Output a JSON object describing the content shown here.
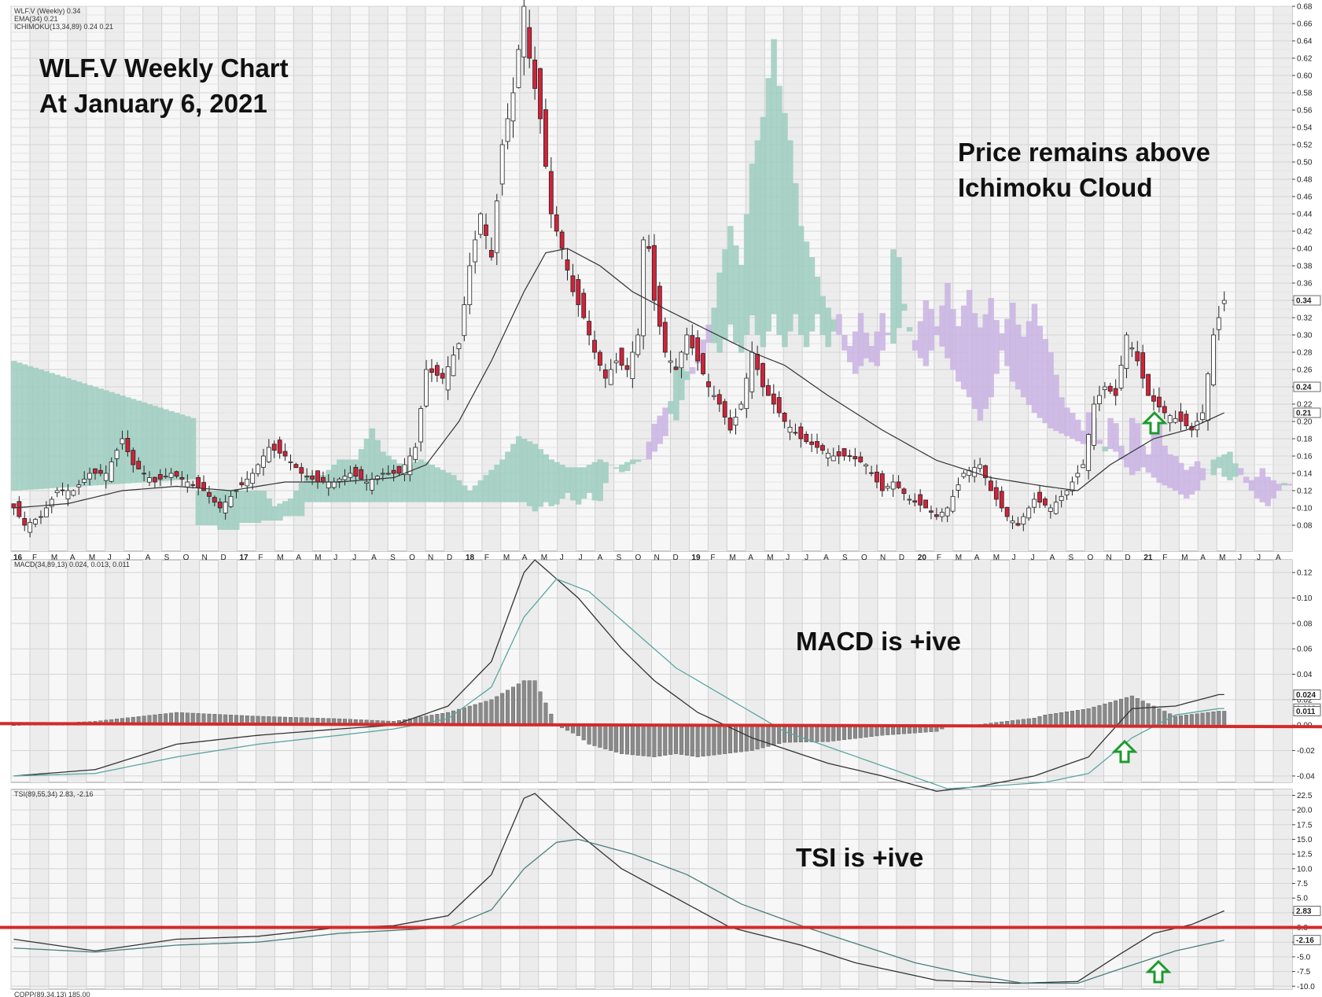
{
  "chart_data": [
    {
      "type": "candlestick",
      "legend": [
        "WLF.V (Weekly) 0.34",
        "EMA(34) 0.21",
        "ICHIMOKU(13,34,89) 0.24 0.21"
      ],
      "annotations": [
        {
          "id": "title",
          "lines": [
            "WLF.V Weekly Chart",
            "At January 6, 2021"
          ]
        },
        {
          "id": "price-note",
          "lines": [
            "Price remains above",
            "Ichimoku Cloud"
          ]
        }
      ],
      "xtick_labels": [
        "16",
        "F",
        "M",
        "A",
        "M",
        "J",
        "J",
        "A",
        "S",
        "O",
        "N",
        "D",
        "17",
        "F",
        "M",
        "A",
        "M",
        "J",
        "J",
        "A",
        "S",
        "O",
        "N",
        "D",
        "18",
        "F",
        "M",
        "A",
        "M",
        "J",
        "J",
        "A",
        "S",
        "O",
        "N",
        "D",
        "19",
        "F",
        "M",
        "A",
        "M",
        "J",
        "J",
        "A",
        "S",
        "O",
        "N",
        "D",
        "20",
        "F",
        "M",
        "A",
        "M",
        "J",
        "J",
        "A",
        "S",
        "O",
        "N",
        "D",
        "21",
        "F",
        "M",
        "A",
        "M",
        "J",
        "J",
        "A"
      ],
      "ylim": [
        0.05,
        0.68
      ],
      "yticks": [
        "0.08",
        "0.10",
        "0.12",
        "0.14",
        "0.16",
        "0.18",
        "0.20",
        "0.22",
        "0.24",
        "0.26",
        "0.28",
        "0.30",
        "0.32",
        "0.34",
        "0.36",
        "0.38",
        "0.40",
        "0.42",
        "0.44",
        "0.46",
        "0.48",
        "0.50",
        "0.52",
        "0.54",
        "0.56",
        "0.58",
        "0.60",
        "0.62",
        "0.64",
        "0.66",
        "0.68"
      ],
      "last_labels": [
        "0.34",
        "0.24",
        "0.21"
      ],
      "price_path": [
        [
          0,
          0.1
        ],
        [
          2,
          0.08
        ],
        [
          5,
          0.09
        ],
        [
          8,
          0.12
        ],
        [
          11,
          0.12
        ],
        [
          14,
          0.14
        ],
        [
          17,
          0.14
        ],
        [
          20,
          0.18
        ],
        [
          22,
          0.15
        ],
        [
          26,
          0.13
        ],
        [
          29,
          0.14
        ],
        [
          32,
          0.13
        ],
        [
          35,
          0.12
        ],
        [
          38,
          0.1
        ],
        [
          41,
          0.12
        ],
        [
          44,
          0.14
        ],
        [
          47,
          0.17
        ],
        [
          50,
          0.16
        ],
        [
          53,
          0.14
        ],
        [
          56,
          0.13
        ],
        [
          59,
          0.13
        ],
        [
          62,
          0.14
        ],
        [
          65,
          0.13
        ],
        [
          68,
          0.14
        ],
        [
          71,
          0.14
        ],
        [
          74,
          0.17
        ],
        [
          76,
          0.26
        ],
        [
          79,
          0.25
        ],
        [
          82,
          0.29
        ],
        [
          84,
          0.38
        ],
        [
          86,
          0.44
        ],
        [
          88,
          0.39
        ],
        [
          90,
          0.52
        ],
        [
          92,
          0.58
        ],
        [
          94,
          0.68
        ],
        [
          95,
          0.62
        ],
        [
          97,
          0.55
        ],
        [
          99,
          0.44
        ],
        [
          101,
          0.4
        ],
        [
          103,
          0.35
        ],
        [
          105,
          0.32
        ],
        [
          107,
          0.28
        ],
        [
          109,
          0.25
        ],
        [
          111,
          0.27
        ],
        [
          113,
          0.26
        ],
        [
          115,
          0.3
        ],
        [
          116,
          0.41
        ],
        [
          117,
          0.4
        ],
        [
          118,
          0.34
        ],
        [
          120,
          0.28
        ],
        [
          122,
          0.26
        ],
        [
          124,
          0.3
        ],
        [
          126,
          0.27
        ],
        [
          128,
          0.24
        ],
        [
          130,
          0.22
        ],
        [
          132,
          0.19
        ],
        [
          134,
          0.22
        ],
        [
          136,
          0.28
        ],
        [
          138,
          0.24
        ],
        [
          140,
          0.22
        ],
        [
          142,
          0.2
        ],
        [
          145,
          0.18
        ],
        [
          148,
          0.17
        ],
        [
          151,
          0.16
        ],
        [
          154,
          0.16
        ],
        [
          157,
          0.15
        ],
        [
          160,
          0.12
        ],
        [
          162,
          0.13
        ],
        [
          165,
          0.11
        ],
        [
          168,
          0.1
        ],
        [
          170,
          0.09
        ],
        [
          172,
          0.1
        ],
        [
          175,
          0.14
        ],
        [
          178,
          0.15
        ],
        [
          180,
          0.12
        ],
        [
          183,
          0.09
        ],
        [
          185,
          0.08
        ],
        [
          188,
          0.11
        ],
        [
          191,
          0.1
        ],
        [
          194,
          0.12
        ],
        [
          197,
          0.15
        ],
        [
          199,
          0.22
        ],
        [
          201,
          0.24
        ],
        [
          203,
          0.23
        ],
        [
          205,
          0.3
        ],
        [
          207,
          0.27
        ],
        [
          209,
          0.23
        ],
        [
          212,
          0.21
        ],
        [
          215,
          0.2
        ],
        [
          217,
          0.19
        ],
        [
          219,
          0.21
        ],
        [
          221,
          0.3
        ],
        [
          223,
          0.34
        ]
      ],
      "ema_path": [
        [
          0,
          0.1
        ],
        [
          10,
          0.105
        ],
        [
          20,
          0.12
        ],
        [
          30,
          0.125
        ],
        [
          40,
          0.12
        ],
        [
          50,
          0.13
        ],
        [
          60,
          0.13
        ],
        [
          70,
          0.135
        ],
        [
          76,
          0.15
        ],
        [
          82,
          0.2
        ],
        [
          88,
          0.27
        ],
        [
          94,
          0.35
        ],
        [
          98,
          0.395
        ],
        [
          102,
          0.4
        ],
        [
          108,
          0.38
        ],
        [
          114,
          0.35
        ],
        [
          120,
          0.33
        ],
        [
          128,
          0.305
        ],
        [
          136,
          0.28
        ],
        [
          142,
          0.265
        ],
        [
          150,
          0.23
        ],
        [
          160,
          0.19
        ],
        [
          170,
          0.155
        ],
        [
          180,
          0.135
        ],
        [
          190,
          0.125
        ],
        [
          196,
          0.12
        ],
        [
          202,
          0.15
        ],
        [
          210,
          0.18
        ],
        [
          216,
          0.19
        ],
        [
          223,
          0.21
        ]
      ]
    },
    {
      "type": "line",
      "legend": [
        "MACD(34,89,13) 0.024, 0.013, 0.011"
      ],
      "annotations": [
        "MACD is +ive"
      ],
      "ylim": [
        -0.045,
        0.13
      ],
      "yticks": [
        "0.12",
        "0.10",
        "0.08",
        "0.06",
        "0.04",
        "0.02",
        "0.00",
        "-0.02",
        "-0.04"
      ],
      "last_labels": [
        "0.024",
        "0.013",
        "0.011"
      ],
      "series": [
        {
          "values": [
            [
              0,
              -0.04
            ],
            [
              15,
              -0.035
            ],
            [
              30,
              -0.015
            ],
            [
              45,
              -0.008
            ],
            [
              60,
              -0.003
            ],
            [
              70,
              0.0
            ],
            [
              80,
              0.015
            ],
            [
              88,
              0.05
            ],
            [
              94,
              0.12
            ],
            [
              96,
              0.13
            ],
            [
              104,
              0.1
            ],
            [
              112,
              0.06
            ],
            [
              118,
              0.035
            ],
            [
              126,
              0.01
            ],
            [
              136,
              -0.01
            ],
            [
              150,
              -0.03
            ],
            [
              160,
              -0.04
            ],
            [
              170,
              -0.052
            ],
            [
              178,
              -0.048
            ],
            [
              188,
              -0.04
            ],
            [
              198,
              -0.025
            ],
            [
              206,
              0.013
            ],
            [
              214,
              0.015
            ],
            [
              222,
              0.024
            ]
          ]
        },
        {
          "values": [
            [
              0,
              -0.04
            ],
            [
              15,
              -0.038
            ],
            [
              30,
              -0.025
            ],
            [
              45,
              -0.015
            ],
            [
              60,
              -0.008
            ],
            [
              70,
              -0.003
            ],
            [
              80,
              0.005
            ],
            [
              88,
              0.03
            ],
            [
              94,
              0.085
            ],
            [
              100,
              0.115
            ],
            [
              106,
              0.105
            ],
            [
              114,
              0.075
            ],
            [
              122,
              0.045
            ],
            [
              132,
              0.02
            ],
            [
              142,
              -0.005
            ],
            [
              152,
              -0.02
            ],
            [
              162,
              -0.035
            ],
            [
              172,
              -0.05
            ],
            [
              180,
              -0.048
            ],
            [
              190,
              -0.045
            ],
            [
              198,
              -0.038
            ],
            [
              206,
              -0.01
            ],
            [
              214,
              0.008
            ],
            [
              222,
              0.013
            ]
          ]
        }
      ]
    },
    {
      "type": "line",
      "legend": [
        "TSI(89,55,34) 2.83, -2.16"
      ],
      "annotations": [
        "TSI is +ive"
      ],
      "ylim": [
        -10.5,
        23.5
      ],
      "yticks": [
        "22.5",
        "20.0",
        "17.5",
        "15.0",
        "12.5",
        "10.0",
        "7.5",
        "5.0",
        "2.5",
        "0.0",
        "-2.5",
        "-5.0",
        "-7.5",
        "-10.0"
      ],
      "last_labels": [
        "2.83",
        "-2.16"
      ],
      "series": [
        {
          "values": [
            [
              0,
              -2.0
            ],
            [
              15,
              -4.0
            ],
            [
              30,
              -2.0
            ],
            [
              45,
              -1.5
            ],
            [
              60,
              0.0
            ],
            [
              70,
              0.3
            ],
            [
              80,
              2.0
            ],
            [
              88,
              9.0
            ],
            [
              94,
              22.0
            ],
            [
              96,
              22.8
            ],
            [
              104,
              16.0
            ],
            [
              112,
              10.0
            ],
            [
              122,
              5.0
            ],
            [
              132,
              0.0
            ],
            [
              145,
              -3.0
            ],
            [
              155,
              -6.0
            ],
            [
              170,
              -9.0
            ],
            [
              185,
              -9.5
            ],
            [
              196,
              -9.2
            ],
            [
              203,
              -5.0
            ],
            [
              210,
              -1.0
            ],
            [
              217,
              0.5
            ],
            [
              223,
              2.83
            ]
          ]
        },
        {
          "values": [
            [
              0,
              -3.5
            ],
            [
              15,
              -4.2
            ],
            [
              30,
              -3.0
            ],
            [
              45,
              -2.5
            ],
            [
              60,
              -1.0
            ],
            [
              70,
              -0.5
            ],
            [
              80,
              0.0
            ],
            [
              88,
              3.0
            ],
            [
              94,
              10.0
            ],
            [
              100,
              14.5
            ],
            [
              104,
              15.0
            ],
            [
              114,
              12.5
            ],
            [
              124,
              9.0
            ],
            [
              134,
              4.0
            ],
            [
              146,
              0.0
            ],
            [
              156,
              -3.0
            ],
            [
              166,
              -6.0
            ],
            [
              176,
              -8.0
            ],
            [
              186,
              -9.5
            ],
            [
              196,
              -9.5
            ],
            [
              204,
              -7.0
            ],
            [
              214,
              -4.0
            ],
            [
              223,
              -2.16
            ]
          ]
        }
      ]
    },
    {
      "type": "line",
      "legend": [
        "COPP(89,34,13) 185.00"
      ]
    }
  ]
}
